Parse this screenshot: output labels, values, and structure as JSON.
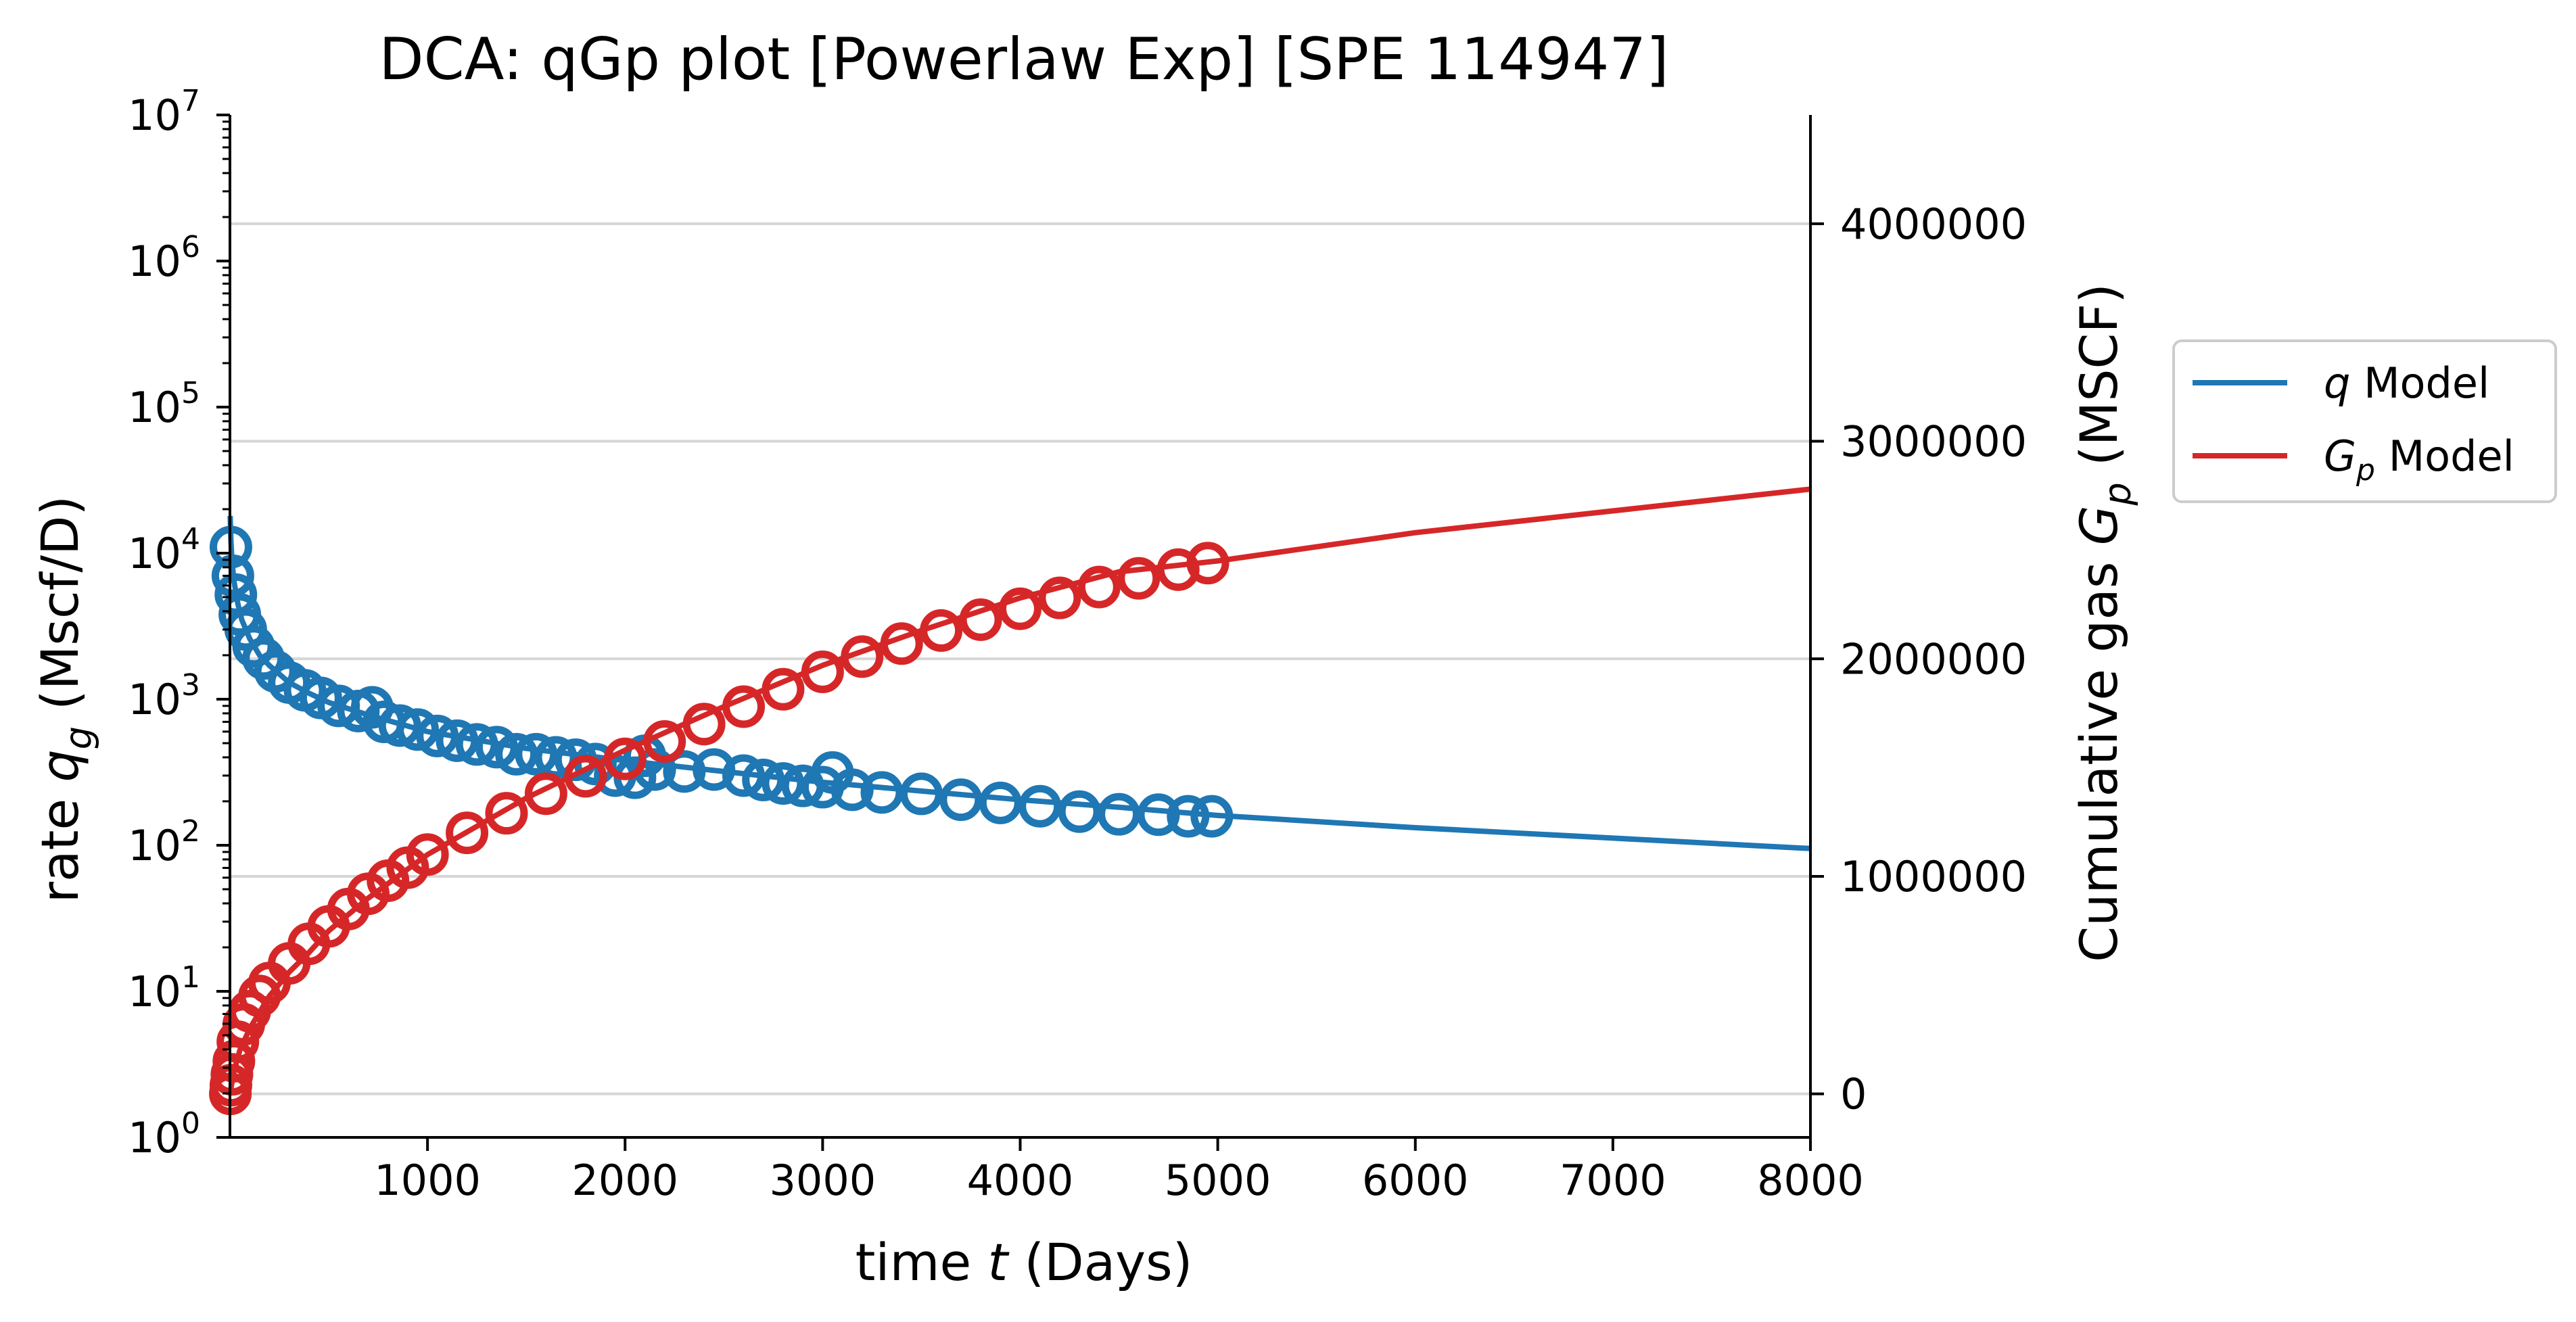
{
  "chart_data": {
    "type": "line",
    "title": "DCA: qGp plot  [Powerlaw Exp]  [SPE 114947]",
    "xlabel": {
      "pre": "time ",
      "var": "t",
      "post": " (Days)"
    },
    "ylabel_left": {
      "pre": "rate ",
      "var": "q",
      "sub": "g",
      "post": " (Mscf/D)"
    },
    "ylabel_right": {
      "pre": "Cumulative gas ",
      "var": "G",
      "sub": "p",
      "post": " (MSCF)"
    },
    "x_range": [
      0,
      8000
    ],
    "x_ticks": [
      1000,
      2000,
      3000,
      4000,
      5000,
      6000,
      7000,
      8000
    ],
    "x_tick_labels": [
      "1000",
      "2000",
      "3000",
      "4000",
      "5000",
      "6000",
      "7000",
      "8000"
    ],
    "y_left": {
      "scale": "log",
      "range": [
        1,
        10000000
      ],
      "tick_exponents": [
        0,
        1,
        2,
        3,
        4,
        5,
        6,
        7
      ],
      "tick_base": "10"
    },
    "y_right": {
      "scale": "linear",
      "range": [
        -200000,
        4500000
      ],
      "ticks": [
        0,
        1000000,
        2000000,
        3000000,
        4000000
      ],
      "tick_labels": [
        "0",
        "1000000",
        "2000000",
        "3000000",
        "4000000"
      ]
    },
    "grid": "horizontal (right axis)",
    "legend_position": "outside right",
    "legend": [
      {
        "var": "q",
        "sub": "",
        "text": " Model",
        "color": "#1f77b4"
      },
      {
        "var": "G",
        "sub": "p",
        "text": " Model",
        "color": "#d62728"
      }
    ],
    "series": [
      {
        "name": "q Model",
        "axis": "left",
        "color": "#1f77b4",
        "points": [
          [
            1,
            18000
          ],
          [
            5,
            12000
          ],
          [
            10,
            9000
          ],
          [
            20,
            6500
          ],
          [
            40,
            4500
          ],
          [
            60,
            3500
          ],
          [
            100,
            2600
          ],
          [
            150,
            2000
          ],
          [
            200,
            1700
          ],
          [
            300,
            1300
          ],
          [
            400,
            1100
          ],
          [
            500,
            950
          ],
          [
            700,
            780
          ],
          [
            1000,
            600
          ],
          [
            1500,
            460
          ],
          [
            2000,
            380
          ],
          [
            2500,
            320
          ],
          [
            3000,
            270
          ],
          [
            3500,
            235
          ],
          [
            4000,
            205
          ],
          [
            4500,
            182
          ],
          [
            5000,
            160
          ],
          [
            6000,
            132
          ],
          [
            7000,
            112
          ],
          [
            8000,
            95
          ]
        ]
      },
      {
        "name": "q data",
        "axis": "left",
        "marker": "circle",
        "color": "#1f77b4",
        "points": [
          [
            5,
            11000
          ],
          [
            15,
            7000
          ],
          [
            30,
            5200
          ],
          [
            50,
            3800
          ],
          [
            80,
            3000
          ],
          [
            120,
            2300
          ],
          [
            170,
            1900
          ],
          [
            230,
            1550
          ],
          [
            300,
            1300
          ],
          [
            380,
            1150
          ],
          [
            460,
            1020
          ],
          [
            550,
            900
          ],
          [
            650,
            830
          ],
          [
            720,
            880
          ],
          [
            780,
            700
          ],
          [
            860,
            660
          ],
          [
            950,
            620
          ],
          [
            1050,
            560
          ],
          [
            1150,
            520
          ],
          [
            1250,
            490
          ],
          [
            1350,
            470
          ],
          [
            1450,
            420
          ],
          [
            1550,
            420
          ],
          [
            1650,
            400
          ],
          [
            1750,
            385
          ],
          [
            1850,
            360
          ],
          [
            1950,
            300
          ],
          [
            2050,
            290
          ],
          [
            2100,
            410
          ],
          [
            2150,
            330
          ],
          [
            2300,
            320
          ],
          [
            2450,
            330
          ],
          [
            2600,
            300
          ],
          [
            2700,
            280
          ],
          [
            2800,
            265
          ],
          [
            2900,
            255
          ],
          [
            3000,
            250
          ],
          [
            3050,
            315
          ],
          [
            3150,
            240
          ],
          [
            3300,
            230
          ],
          [
            3500,
            225
          ],
          [
            3700,
            205
          ],
          [
            3900,
            195
          ],
          [
            4100,
            185
          ],
          [
            4300,
            170
          ],
          [
            4500,
            163
          ],
          [
            4700,
            162
          ],
          [
            4850,
            158
          ],
          [
            4970,
            158
          ]
        ]
      },
      {
        "name": "Gp Model",
        "axis": "right",
        "color": "#d62728",
        "points": [
          [
            0,
            0
          ],
          [
            20,
            100000
          ],
          [
            50,
            200000
          ],
          [
            100,
            300000
          ],
          [
            200,
            450000
          ],
          [
            300,
            560000
          ],
          [
            400,
            650000
          ],
          [
            500,
            750000
          ],
          [
            700,
            900000
          ],
          [
            1000,
            1100000
          ],
          [
            1500,
            1360000
          ],
          [
            2000,
            1580000
          ],
          [
            2500,
            1780000
          ],
          [
            3000,
            1970000
          ],
          [
            3500,
            2130000
          ],
          [
            4000,
            2280000
          ],
          [
            4500,
            2400000
          ],
          [
            5000,
            2450000
          ],
          [
            6000,
            2580000
          ],
          [
            7000,
            2680000
          ],
          [
            8000,
            2780000
          ]
        ]
      },
      {
        "name": "Gp data",
        "axis": "right",
        "marker": "circle",
        "color": "#d62728",
        "points": [
          [
            2,
            0
          ],
          [
            5,
            40000
          ],
          [
            10,
            90000
          ],
          [
            20,
            150000
          ],
          [
            40,
            240000
          ],
          [
            70,
            320000
          ],
          [
            100,
            380000
          ],
          [
            150,
            450000
          ],
          [
            200,
            510000
          ],
          [
            300,
            600000
          ],
          [
            400,
            690000
          ],
          [
            500,
            770000
          ],
          [
            600,
            850000
          ],
          [
            700,
            920000
          ],
          [
            800,
            980000
          ],
          [
            900,
            1040000
          ],
          [
            1000,
            1100000
          ],
          [
            1200,
            1200000
          ],
          [
            1400,
            1290000
          ],
          [
            1600,
            1380000
          ],
          [
            1800,
            1460000
          ],
          [
            2000,
            1540000
          ],
          [
            2200,
            1620000
          ],
          [
            2400,
            1700000
          ],
          [
            2600,
            1780000
          ],
          [
            2800,
            1860000
          ],
          [
            3000,
            1940000
          ],
          [
            3200,
            2010000
          ],
          [
            3400,
            2070000
          ],
          [
            3600,
            2130000
          ],
          [
            3800,
            2180000
          ],
          [
            4000,
            2230000
          ],
          [
            4200,
            2280000
          ],
          [
            4400,
            2330000
          ],
          [
            4600,
            2370000
          ],
          [
            4800,
            2410000
          ],
          [
            4950,
            2440000
          ]
        ]
      }
    ]
  }
}
